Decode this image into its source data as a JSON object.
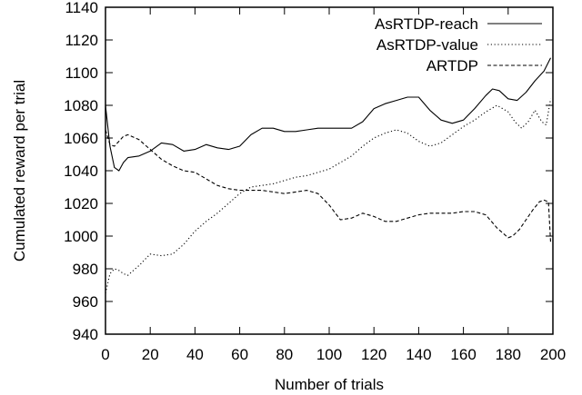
{
  "chart_data": {
    "type": "line",
    "xlabel": "Number of trials",
    "ylabel": "Cumulated reward per trial",
    "xlim": [
      0,
      200
    ],
    "ylim": [
      940,
      1140
    ],
    "xticks": [
      0,
      20,
      40,
      60,
      80,
      100,
      120,
      140,
      160,
      180,
      200
    ],
    "yticks": [
      940,
      960,
      980,
      1000,
      1020,
      1040,
      1060,
      1080,
      1100,
      1120,
      1140
    ],
    "grid": false,
    "legend_position": "top-right",
    "series": [
      {
        "name": "AsRTDP-reach",
        "style": "solid",
        "x": [
          0,
          2,
          4,
          6,
          8,
          10,
          15,
          20,
          25,
          30,
          35,
          40,
          45,
          50,
          55,
          60,
          65,
          70,
          75,
          80,
          85,
          90,
          95,
          100,
          105,
          110,
          115,
          120,
          125,
          130,
          135,
          140,
          145,
          150,
          155,
          160,
          165,
          170,
          173,
          176,
          180,
          184,
          188,
          192,
          196,
          199
        ],
        "y": [
          1080,
          1055,
          1042,
          1040,
          1045,
          1048,
          1049,
          1052,
          1057,
          1056,
          1052,
          1053,
          1056,
          1054,
          1053,
          1055,
          1062,
          1066,
          1066,
          1064,
          1064,
          1065,
          1066,
          1066,
          1066,
          1066,
          1070,
          1078,
          1081,
          1083,
          1085,
          1085,
          1077,
          1071,
          1069,
          1071,
          1078,
          1086,
          1090,
          1089,
          1084,
          1083,
          1088,
          1095,
          1101,
          1109
        ]
      },
      {
        "name": "AsRTDP-value",
        "style": "dotted",
        "x": [
          0,
          2,
          4,
          6,
          8,
          10,
          15,
          20,
          25,
          30,
          35,
          40,
          45,
          50,
          55,
          60,
          65,
          70,
          75,
          80,
          85,
          90,
          95,
          100,
          105,
          110,
          115,
          120,
          125,
          130,
          135,
          140,
          145,
          150,
          155,
          160,
          165,
          170,
          175,
          180,
          183,
          186,
          189,
          192,
          195,
          197,
          199
        ],
        "y": [
          965,
          977,
          980,
          979,
          977,
          976,
          982,
          989,
          988,
          989,
          995,
          1003,
          1009,
          1014,
          1020,
          1026,
          1030,
          1031,
          1032,
          1034,
          1036,
          1037,
          1039,
          1041,
          1045,
          1049,
          1055,
          1060,
          1063,
          1065,
          1063,
          1058,
          1055,
          1057,
          1062,
          1067,
          1071,
          1076,
          1080,
          1076,
          1070,
          1066,
          1070,
          1077,
          1070,
          1068,
          1084
        ]
      },
      {
        "name": "ARTDP",
        "style": "dashed",
        "x": [
          0,
          2,
          4,
          6,
          8,
          10,
          15,
          20,
          25,
          30,
          35,
          40,
          45,
          50,
          55,
          60,
          65,
          70,
          75,
          80,
          85,
          90,
          95,
          100,
          105,
          110,
          115,
          120,
          125,
          130,
          135,
          140,
          145,
          150,
          155,
          160,
          165,
          170,
          175,
          180,
          182,
          185,
          188,
          191,
          194,
          196,
          198,
          199
        ],
        "y": [
          1065,
          1056,
          1055,
          1058,
          1061,
          1062,
          1059,
          1053,
          1047,
          1043,
          1040,
          1039,
          1035,
          1031,
          1029,
          1028,
          1028,
          1028,
          1027,
          1026,
          1027,
          1028,
          1026,
          1019,
          1010,
          1011,
          1014,
          1012,
          1009,
          1009,
          1011,
          1013,
          1014,
          1014,
          1014,
          1015,
          1015,
          1013,
          1005,
          999,
          1000,
          1004,
          1010,
          1016,
          1021,
          1022,
          1021,
          996
        ]
      }
    ]
  }
}
